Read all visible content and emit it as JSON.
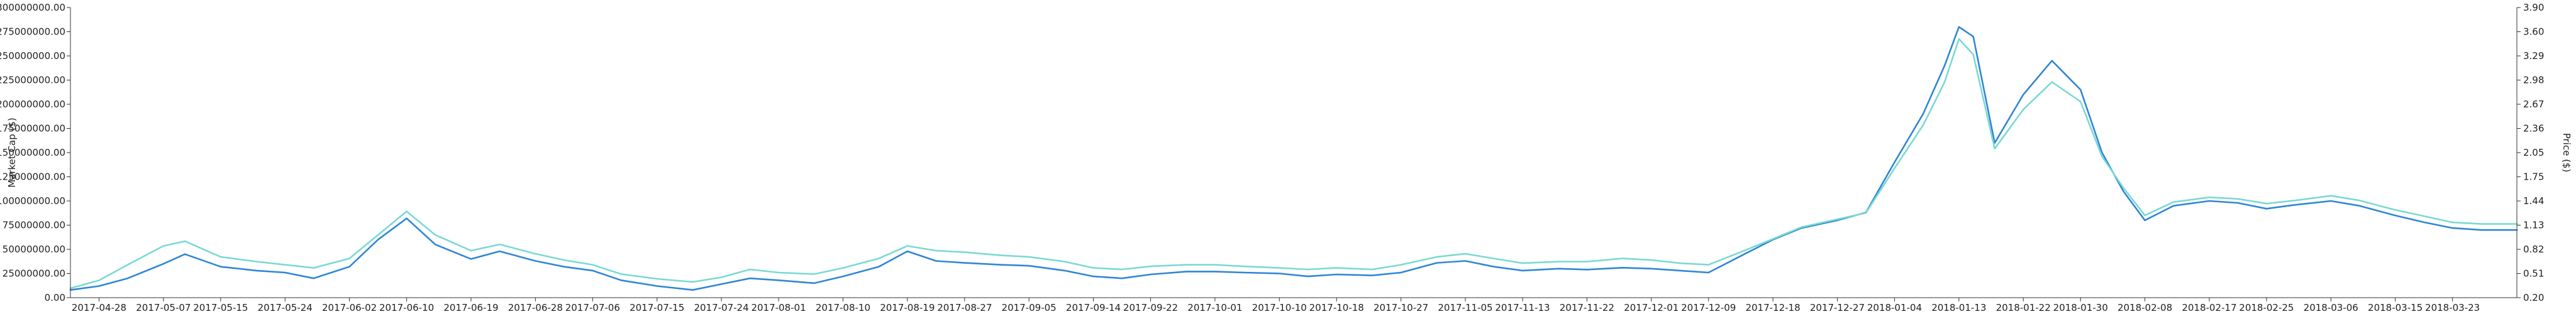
{
  "chart_data": {
    "type": "line",
    "title": "",
    "x_axis": {
      "type": "date",
      "range": [
        "2017-04-24",
        "2018-04-01"
      ],
      "tick_labels": [
        "2017-04-28",
        "2017-05-07",
        "2017-05-15",
        "2017-05-24",
        "2017-06-02",
        "2017-06-10",
        "2017-06-19",
        "2017-06-28",
        "2017-07-06",
        "2017-07-15",
        "2017-07-24",
        "2017-08-01",
        "2017-08-10",
        "2017-08-19",
        "2017-08-27",
        "2017-09-05",
        "2017-09-14",
        "2017-09-22",
        "2017-10-01",
        "2017-10-10",
        "2017-10-18",
        "2017-10-27",
        "2017-11-05",
        "2017-11-13",
        "2017-11-22",
        "2017-12-01",
        "2017-12-09",
        "2017-12-18",
        "2017-12-27",
        "2018-01-04",
        "2018-01-13",
        "2018-01-22",
        "2018-01-30",
        "2018-02-08",
        "2018-02-17",
        "2018-02-25",
        "2018-03-06",
        "2018-03-15",
        "2018-03-23"
      ]
    },
    "y_left": {
      "label": "Market Cap ($)",
      "range": [
        0,
        300000000
      ],
      "tick_labels": [
        "0.00",
        "25000000.00",
        "50000000.00",
        "75000000.00",
        "100000000.00",
        "125000000.00",
        "150000000.00",
        "175000000.00",
        "200000000.00",
        "225000000.00",
        "250000000.00",
        "275000000.00",
        "300000000.00"
      ]
    },
    "y_right": {
      "label": "Price ($)",
      "range": [
        0.2,
        3.9
      ],
      "tick_labels": [
        "0.20",
        "0.51",
        "0.82",
        "1.13",
        "1.44",
        "1.75",
        "2.05",
        "2.36",
        "2.67",
        "2.98",
        "3.29",
        "3.60",
        "3.90"
      ]
    },
    "grid": false,
    "legend": "none",
    "series": [
      {
        "axis": "left",
        "color": "#2f86d6",
        "points": [
          [
            "2017-04-24",
            8000000
          ],
          [
            "2017-04-28",
            12000000
          ],
          [
            "2017-05-02",
            20000000
          ],
          [
            "2017-05-07",
            35000000
          ],
          [
            "2017-05-10",
            45000000
          ],
          [
            "2017-05-15",
            32000000
          ],
          [
            "2017-05-20",
            28000000
          ],
          [
            "2017-05-24",
            26000000
          ],
          [
            "2017-05-28",
            20000000
          ],
          [
            "2017-06-02",
            32000000
          ],
          [
            "2017-06-06",
            60000000
          ],
          [
            "2017-06-10",
            82000000
          ],
          [
            "2017-06-14",
            55000000
          ],
          [
            "2017-06-19",
            40000000
          ],
          [
            "2017-06-23",
            48000000
          ],
          [
            "2017-06-28",
            38000000
          ],
          [
            "2017-07-02",
            32000000
          ],
          [
            "2017-07-06",
            28000000
          ],
          [
            "2017-07-10",
            18000000
          ],
          [
            "2017-07-15",
            12000000
          ],
          [
            "2017-07-20",
            8000000
          ],
          [
            "2017-07-24",
            14000000
          ],
          [
            "2017-07-28",
            20000000
          ],
          [
            "2017-08-01",
            18000000
          ],
          [
            "2017-08-06",
            15000000
          ],
          [
            "2017-08-10",
            22000000
          ],
          [
            "2017-08-15",
            32000000
          ],
          [
            "2017-08-19",
            48000000
          ],
          [
            "2017-08-23",
            38000000
          ],
          [
            "2017-08-27",
            36000000
          ],
          [
            "2017-09-01",
            34000000
          ],
          [
            "2017-09-05",
            33000000
          ],
          [
            "2017-09-10",
            28000000
          ],
          [
            "2017-09-14",
            22000000
          ],
          [
            "2017-09-18",
            20000000
          ],
          [
            "2017-09-22",
            24000000
          ],
          [
            "2017-09-27",
            27000000
          ],
          [
            "2017-10-01",
            27000000
          ],
          [
            "2017-10-05",
            26000000
          ],
          [
            "2017-10-10",
            25000000
          ],
          [
            "2017-10-14",
            22000000
          ],
          [
            "2017-10-18",
            24000000
          ],
          [
            "2017-10-23",
            23000000
          ],
          [
            "2017-10-27",
            26000000
          ],
          [
            "2017-11-01",
            36000000
          ],
          [
            "2017-11-05",
            38000000
          ],
          [
            "2017-11-09",
            32000000
          ],
          [
            "2017-11-13",
            28000000
          ],
          [
            "2017-11-18",
            30000000
          ],
          [
            "2017-11-22",
            29000000
          ],
          [
            "2017-11-27",
            31000000
          ],
          [
            "2017-12-01",
            30000000
          ],
          [
            "2017-12-05",
            28000000
          ],
          [
            "2017-12-09",
            26000000
          ],
          [
            "2017-12-14",
            45000000
          ],
          [
            "2017-12-18",
            60000000
          ],
          [
            "2017-12-22",
            72000000
          ],
          [
            "2017-12-27",
            80000000
          ],
          [
            "2017-12-31",
            88000000
          ],
          [
            "2018-01-04",
            140000000
          ],
          [
            "2018-01-08",
            190000000
          ],
          [
            "2018-01-11",
            240000000
          ],
          [
            "2018-01-13",
            280000000
          ],
          [
            "2018-01-15",
            270000000
          ],
          [
            "2018-01-18",
            160000000
          ],
          [
            "2018-01-22",
            210000000
          ],
          [
            "2018-01-26",
            245000000
          ],
          [
            "2018-01-30",
            215000000
          ],
          [
            "2018-02-02",
            150000000
          ],
          [
            "2018-02-05",
            110000000
          ],
          [
            "2018-02-08",
            80000000
          ],
          [
            "2018-02-12",
            95000000
          ],
          [
            "2018-02-17",
            100000000
          ],
          [
            "2018-02-21",
            98000000
          ],
          [
            "2018-02-25",
            92000000
          ],
          [
            "2018-03-01",
            96000000
          ],
          [
            "2018-03-06",
            100000000
          ],
          [
            "2018-03-10",
            95000000
          ],
          [
            "2018-03-15",
            85000000
          ],
          [
            "2018-03-19",
            78000000
          ],
          [
            "2018-03-23",
            72000000
          ],
          [
            "2018-03-27",
            70000000
          ],
          [
            "2018-04-01",
            70000000
          ]
        ]
      },
      {
        "axis": "right",
        "color": "#7ad9d3",
        "points": [
          [
            "2017-04-24",
            0.32
          ],
          [
            "2017-04-28",
            0.42
          ],
          [
            "2017-05-02",
            0.62
          ],
          [
            "2017-05-07",
            0.86
          ],
          [
            "2017-05-10",
            0.92
          ],
          [
            "2017-05-15",
            0.72
          ],
          [
            "2017-05-20",
            0.66
          ],
          [
            "2017-05-24",
            0.62
          ],
          [
            "2017-05-28",
            0.58
          ],
          [
            "2017-06-02",
            0.7
          ],
          [
            "2017-06-06",
            1.0
          ],
          [
            "2017-06-10",
            1.3
          ],
          [
            "2017-06-14",
            1.0
          ],
          [
            "2017-06-19",
            0.8
          ],
          [
            "2017-06-23",
            0.88
          ],
          [
            "2017-06-28",
            0.76
          ],
          [
            "2017-07-02",
            0.68
          ],
          [
            "2017-07-06",
            0.62
          ],
          [
            "2017-07-10",
            0.5
          ],
          [
            "2017-07-15",
            0.44
          ],
          [
            "2017-07-20",
            0.4
          ],
          [
            "2017-07-24",
            0.46
          ],
          [
            "2017-07-28",
            0.56
          ],
          [
            "2017-08-01",
            0.52
          ],
          [
            "2017-08-06",
            0.5
          ],
          [
            "2017-08-10",
            0.58
          ],
          [
            "2017-08-15",
            0.7
          ],
          [
            "2017-08-19",
            0.86
          ],
          [
            "2017-08-23",
            0.8
          ],
          [
            "2017-08-27",
            0.78
          ],
          [
            "2017-09-01",
            0.74
          ],
          [
            "2017-09-05",
            0.72
          ],
          [
            "2017-09-10",
            0.66
          ],
          [
            "2017-09-14",
            0.58
          ],
          [
            "2017-09-18",
            0.56
          ],
          [
            "2017-09-22",
            0.6
          ],
          [
            "2017-09-27",
            0.62
          ],
          [
            "2017-10-01",
            0.62
          ],
          [
            "2017-10-05",
            0.6
          ],
          [
            "2017-10-10",
            0.58
          ],
          [
            "2017-10-14",
            0.56
          ],
          [
            "2017-10-18",
            0.58
          ],
          [
            "2017-10-23",
            0.56
          ],
          [
            "2017-10-27",
            0.62
          ],
          [
            "2017-11-01",
            0.72
          ],
          [
            "2017-11-05",
            0.76
          ],
          [
            "2017-11-09",
            0.7
          ],
          [
            "2017-11-13",
            0.64
          ],
          [
            "2017-11-18",
            0.66
          ],
          [
            "2017-11-22",
            0.66
          ],
          [
            "2017-11-27",
            0.7
          ],
          [
            "2017-12-01",
            0.68
          ],
          [
            "2017-12-05",
            0.64
          ],
          [
            "2017-12-09",
            0.62
          ],
          [
            "2017-12-14",
            0.8
          ],
          [
            "2017-12-18",
            0.95
          ],
          [
            "2017-12-22",
            1.1
          ],
          [
            "2017-12-27",
            1.2
          ],
          [
            "2017-12-31",
            1.28
          ],
          [
            "2018-01-04",
            1.85
          ],
          [
            "2018-01-08",
            2.4
          ],
          [
            "2018-01-11",
            2.95
          ],
          [
            "2018-01-13",
            3.5
          ],
          [
            "2018-01-15",
            3.3
          ],
          [
            "2018-01-18",
            2.1
          ],
          [
            "2018-01-22",
            2.6
          ],
          [
            "2018-01-26",
            2.95
          ],
          [
            "2018-01-30",
            2.7
          ],
          [
            "2018-02-02",
            2.0
          ],
          [
            "2018-02-05",
            1.6
          ],
          [
            "2018-02-08",
            1.25
          ],
          [
            "2018-02-12",
            1.42
          ],
          [
            "2018-02-17",
            1.48
          ],
          [
            "2018-02-21",
            1.46
          ],
          [
            "2018-02-25",
            1.4
          ],
          [
            "2018-03-01",
            1.44
          ],
          [
            "2018-03-06",
            1.5
          ],
          [
            "2018-03-10",
            1.44
          ],
          [
            "2018-03-15",
            1.32
          ],
          [
            "2018-03-19",
            1.24
          ],
          [
            "2018-03-23",
            1.16
          ],
          [
            "2018-03-27",
            1.14
          ],
          [
            "2018-04-01",
            1.14
          ]
        ]
      }
    ]
  }
}
